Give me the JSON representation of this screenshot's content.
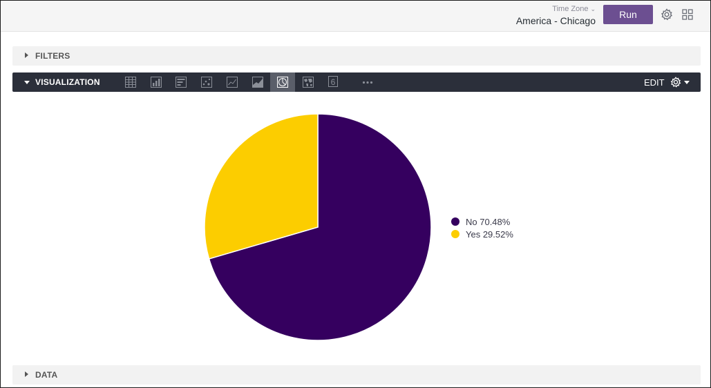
{
  "header": {
    "timezone_label": "Time Zone",
    "timezone_value": "America - Chicago",
    "run_label": "Run",
    "icons": [
      "settings-gear-icon",
      "grid-apps-icon"
    ]
  },
  "filters": {
    "label": "FILTERS"
  },
  "visualization": {
    "label": "VISUALIZATION",
    "tools": [
      {
        "name": "table-viz-icon",
        "active": false
      },
      {
        "name": "column-chart-viz-icon",
        "active": false
      },
      {
        "name": "bar-chart-viz-icon",
        "active": false
      },
      {
        "name": "scatter-viz-icon",
        "active": false
      },
      {
        "name": "line-chart-viz-icon",
        "active": false
      },
      {
        "name": "area-chart-viz-icon",
        "active": false
      },
      {
        "name": "pie-chart-viz-icon",
        "active": true
      },
      {
        "name": "map-viz-icon",
        "active": false
      },
      {
        "name": "single-value-viz-icon",
        "active": false,
        "text": "6"
      },
      {
        "name": "more-options-icon",
        "active": false
      }
    ],
    "edit_label": "EDIT"
  },
  "chart_data": {
    "type": "pie",
    "slices": [
      {
        "label": "No",
        "value": 70.48,
        "color": "#35005f"
      },
      {
        "label": "Yes",
        "value": 29.52,
        "color": "#fccd00"
      }
    ],
    "legend_entries": [
      "No 70.48%",
      "Yes 29.52%"
    ],
    "legend_placement": "right"
  },
  "data_section": {
    "label": "DATA"
  }
}
